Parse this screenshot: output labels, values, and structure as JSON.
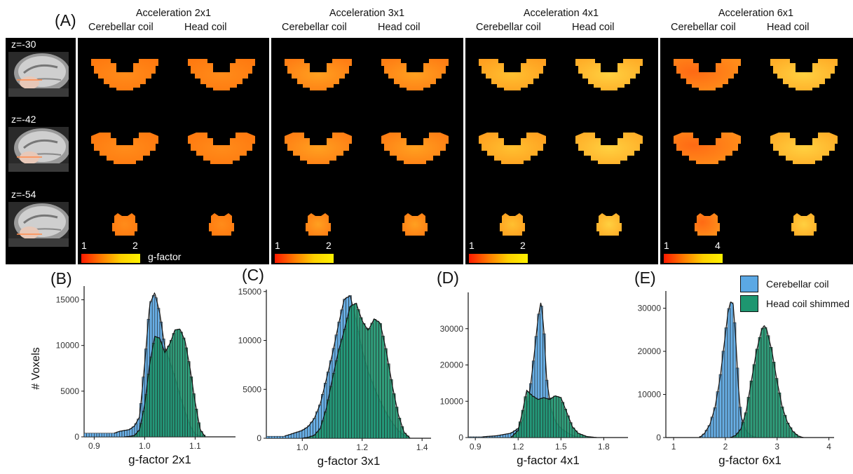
{
  "panel_a": {
    "letter": "(A)",
    "columns": [
      {
        "title": "Acceleration 2x1",
        "left_label": "Cerebellar coil",
        "right_label": "Head coil",
        "cbar_min": "1",
        "cbar_max": "2"
      },
      {
        "title": "Acceleration 3x1",
        "left_label": "Cerebellar coil",
        "right_label": "Head coil",
        "cbar_min": "1",
        "cbar_max": "2"
      },
      {
        "title": "Acceleration 4x1",
        "left_label": "Cerebellar coil",
        "right_label": "Head coil",
        "cbar_min": "1",
        "cbar_max": "2"
      },
      {
        "title": "Acceleration 6x1",
        "left_label": "Cerebellar coil",
        "right_label": "Head coil",
        "cbar_min": "1",
        "cbar_max": "4"
      }
    ],
    "slices": [
      "z=-30",
      "z=-42",
      "z=-54"
    ],
    "colorbar_title": "g-factor"
  },
  "legend": {
    "items": [
      {
        "label": "Cerebellar coil",
        "color": "#5ba8e4"
      },
      {
        "label": "Head coil shimmed",
        "color": "#1e9670"
      }
    ]
  },
  "chart_data": [
    {
      "type": "histogram",
      "panel": "(B)",
      "xlabel": "g-factor 2x1",
      "ylabel": "# Voxels",
      "xlim": [
        0.88,
        1.18
      ],
      "ylim": [
        0,
        16500
      ],
      "xticks": [
        0.9,
        1.0,
        1.1
      ],
      "xtick_labels": [
        "0.9",
        "1.0",
        "1.1"
      ],
      "yticks": [
        0,
        5000,
        10000,
        15000
      ],
      "ytick_labels": [
        "0",
        "5000",
        "10000",
        "15000"
      ],
      "series": [
        {
          "name": "Cerebellar coil",
          "x": [
            0.94,
            0.95,
            0.96,
            0.97,
            0.98,
            0.99,
            1.0,
            1.01,
            1.02,
            1.03,
            1.04,
            1.05,
            1.06,
            1.07,
            1.08,
            1.09,
            1.1,
            1.11,
            1.12
          ],
          "y": [
            400,
            600,
            700,
            800,
            1200,
            2200,
            8000,
            14500,
            15800,
            13500,
            9800,
            8200,
            6500,
            4500,
            2800,
            1200,
            300,
            80,
            0
          ]
        },
        {
          "name": "Head coil shimmed",
          "x": [
            0.96,
            0.97,
            0.98,
            0.99,
            1.0,
            1.01,
            1.02,
            1.03,
            1.04,
            1.05,
            1.06,
            1.07,
            1.08,
            1.09,
            1.1,
            1.11,
            1.12
          ],
          "y": [
            0,
            50,
            150,
            800,
            3500,
            8000,
            11000,
            10800,
            9200,
            10200,
            11700,
            11800,
            10500,
            7500,
            3800,
            800,
            0
          ]
        }
      ]
    },
    {
      "type": "histogram",
      "panel": "(C)",
      "xlabel": "g-factor 3x1",
      "ylabel": "",
      "xlim": [
        0.88,
        1.43
      ],
      "ylim": [
        0,
        15200
      ],
      "xticks": [
        1.0,
        1.2,
        1.4
      ],
      "xtick_labels": [
        "1.0",
        "1.2",
        "1.4"
      ],
      "yticks": [
        0,
        5000,
        10000,
        15000
      ],
      "ytick_labels": [
        "0",
        "5000",
        "10000",
        "15000"
      ],
      "series": [
        {
          "name": "Cerebellar coil",
          "x": [
            0.94,
            0.96,
            0.98,
            1.0,
            1.02,
            1.04,
            1.06,
            1.08,
            1.1,
            1.12,
            1.14,
            1.16,
            1.18,
            1.2,
            1.22,
            1.24,
            1.26,
            1.28,
            1.3,
            1.32,
            1.34,
            1.36
          ],
          "y": [
            200,
            400,
            600,
            800,
            1200,
            2000,
            3500,
            6000,
            8500,
            11500,
            14200,
            14600,
            12000,
            9000,
            6800,
            5200,
            3800,
            2600,
            1600,
            800,
            300,
            0
          ]
        },
        {
          "name": "Head coil shimmed",
          "x": [
            1.0,
            1.02,
            1.04,
            1.06,
            1.08,
            1.1,
            1.12,
            1.14,
            1.16,
            1.18,
            1.2,
            1.22,
            1.24,
            1.26,
            1.28,
            1.3,
            1.32,
            1.34,
            1.36
          ],
          "y": [
            0,
            100,
            300,
            1000,
            3000,
            6000,
            8800,
            11000,
            13500,
            13800,
            12000,
            11000,
            12200,
            11800,
            9000,
            5500,
            2500,
            600,
            0
          ]
        }
      ]
    },
    {
      "type": "histogram",
      "panel": "(D)",
      "xlabel": "g-factor 4x1",
      "ylabel": "",
      "xlim": [
        0.85,
        1.97
      ],
      "ylim": [
        0,
        40000
      ],
      "xticks": [
        0.9,
        1.2,
        1.5,
        1.8
      ],
      "xtick_labels": [
        "0.9",
        "1.2",
        "1.5",
        "1.8"
      ],
      "yticks": [
        0,
        10000,
        20000,
        30000
      ],
      "ytick_labels": [
        "0",
        "10000",
        "20000",
        "30000"
      ],
      "series": [
        {
          "name": "Cerebellar coil",
          "x": [
            0.95,
            1.05,
            1.15,
            1.2,
            1.25,
            1.28,
            1.31,
            1.34,
            1.36,
            1.38,
            1.4,
            1.43,
            1.46,
            1.5,
            1.55,
            1.6,
            1.65
          ],
          "y": [
            200,
            500,
            1200,
            2500,
            6000,
            12000,
            22000,
            33000,
            37500,
            30000,
            16000,
            8000,
            4500,
            2500,
            1200,
            300,
            0
          ]
        },
        {
          "name": "Head coil shimmed",
          "x": [
            1.15,
            1.2,
            1.23,
            1.26,
            1.3,
            1.34,
            1.38,
            1.42,
            1.46,
            1.5,
            1.54,
            1.58,
            1.62,
            1.68,
            1.75
          ],
          "y": [
            0,
            2000,
            7000,
            13000,
            11500,
            10500,
            11000,
            10500,
            11500,
            11000,
            7000,
            3000,
            1200,
            300,
            0
          ]
        }
      ]
    },
    {
      "type": "histogram",
      "panel": "(E)",
      "xlabel": "g-factor 6x1",
      "ylabel": "",
      "xlim": [
        0.85,
        4.1
      ],
      "ylim": [
        0,
        34000
      ],
      "xticks": [
        1,
        2,
        3,
        4
      ],
      "xtick_labels": [
        "1",
        "2",
        "3",
        "4"
      ],
      "yticks": [
        0,
        10000,
        20000,
        30000
      ],
      "ytick_labels": [
        "0",
        "10000",
        "20000",
        "30000"
      ],
      "series": [
        {
          "name": "Cerebellar coil",
          "x": [
            1.5,
            1.6,
            1.7,
            1.8,
            1.9,
            2.0,
            2.05,
            2.1,
            2.15,
            2.2,
            2.25,
            2.3,
            2.4,
            2.5,
            2.6
          ],
          "y": [
            0,
            1000,
            3000,
            7000,
            14000,
            24000,
            29000,
            31500,
            31000,
            23000,
            12000,
            5000,
            1500,
            400,
            0
          ]
        },
        {
          "name": "Head coil shimmed",
          "x": [
            2.1,
            2.2,
            2.3,
            2.4,
            2.5,
            2.6,
            2.7,
            2.75,
            2.8,
            2.9,
            3.0,
            3.1,
            3.2,
            3.3,
            3.4,
            3.5
          ],
          "y": [
            0,
            500,
            2000,
            6000,
            13000,
            20000,
            25000,
            26000,
            25000,
            20000,
            13000,
            7000,
            3500,
            1500,
            400,
            0
          ]
        }
      ]
    }
  ]
}
